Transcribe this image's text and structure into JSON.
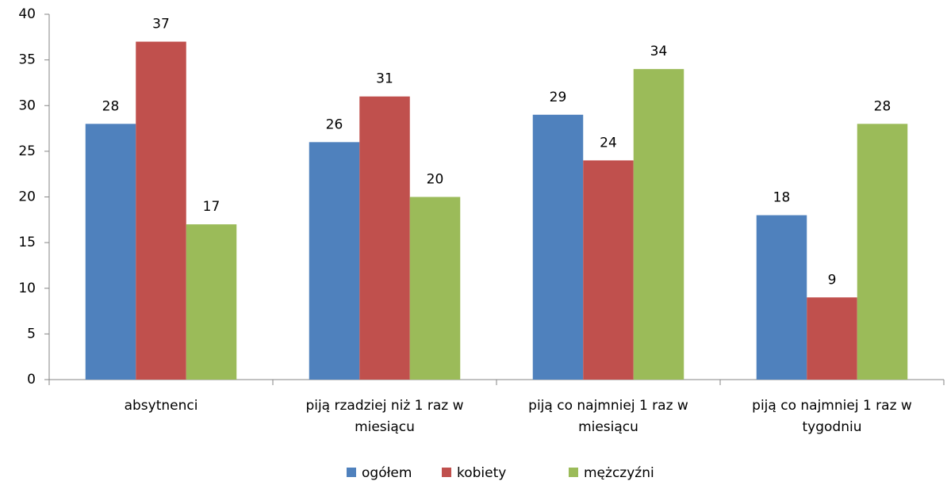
{
  "chart_data": {
    "type": "bar",
    "categories": [
      "absytnenci",
      "piją rzadziej niż 1 raz w miesiącu",
      "piją co najmniej 1 raz w miesiącu",
      "piją co najmniej 1 raz w tygodniu"
    ],
    "series": [
      {
        "name": "ogółem",
        "color": "#4f81bd",
        "values": [
          28,
          26,
          29,
          18
        ]
      },
      {
        "name": "kobiety",
        "color": "#c0504d",
        "values": [
          37,
          31,
          24,
          9
        ]
      },
      {
        "name": "mężczyźni",
        "color": "#9bbb59",
        "values": [
          17,
          20,
          34,
          28
        ]
      }
    ],
    "ylim": [
      0,
      40
    ],
    "yticks": [
      0,
      5,
      10,
      15,
      20,
      25,
      30,
      35,
      40
    ],
    "grid": false,
    "legend": "bottom"
  }
}
